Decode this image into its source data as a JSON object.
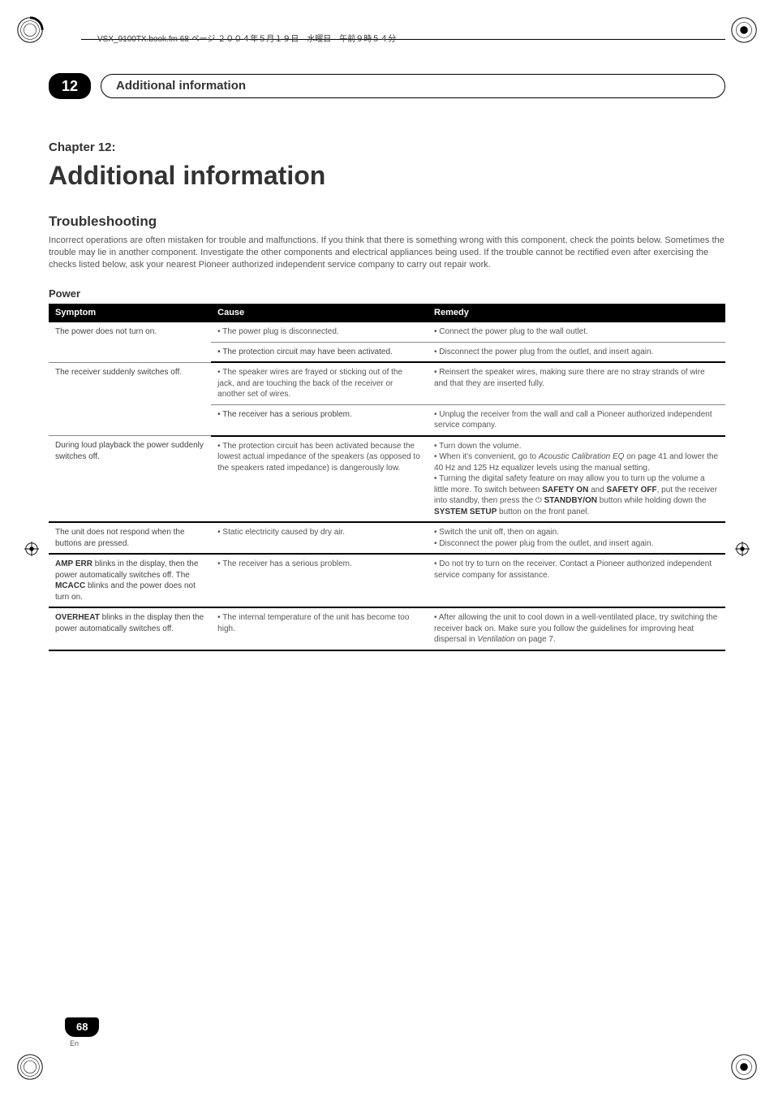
{
  "header_line": "VSX_9100TX.book.fm 68 ページ ２００４年５月１９日　水曜日　午前９時５４分",
  "section_number": "12",
  "section_title": "Additional information",
  "chapter_label": "Chapter 12:",
  "chapter_title": "Additional information",
  "subheading": "Troubleshooting",
  "intro_text": "Incorrect operations are often mistaken for trouble and malfunctions. If you think that there is something wrong with this component, check the points below. Sometimes the trouble may lie in another component. Investigate the other components and electrical appliances being used. If the trouble cannot be rectified even after exercising the checks listed below, ask your nearest Pioneer authorized independent service company to carry out repair work.",
  "power_heading": "Power",
  "table": {
    "columns": [
      "Symptom",
      "Cause",
      "Remedy"
    ],
    "rows": [
      {
        "symptom": "The power does not turn on.",
        "cause": "• The power plug is disconnected.",
        "remedy": "• Connect the power plug to the wall outlet.",
        "rowspan_symptom": 2,
        "heavy": false
      },
      {
        "symptom": "",
        "cause": "• The protection circuit may have been activated.",
        "remedy": "• Disconnect the power plug from the outlet, and insert again.",
        "heavy": true
      },
      {
        "symptom": "The receiver suddenly switches off.",
        "cause": "• The speaker wires are frayed or sticking out of the jack, and are touching the back of the receiver or another set of wires.",
        "remedy": "• Reinsert the speaker wires, making sure there are no stray strands of wire and that they are inserted fully.",
        "rowspan_symptom": 2,
        "heavy": false
      },
      {
        "symptom": "",
        "cause": "• The receiver has a serious problem.",
        "remedy": "• Unplug the receiver from the wall and call a Pioneer authorized independent service company.",
        "heavy": true
      },
      {
        "symptom": "During loud playback the power suddenly switches off.",
        "cause": "• The protection circuit has been activated because the lowest actual impedance of the speakers (as opposed to the speakers rated impedance) is dangerously low.",
        "remedy_html": "• Turn down the volume.<br>• When it's convenient, go to <span class=\"i\">Acoustic Calibration EQ</span> on page 41 and lower the 40 Hz and 125 Hz equalizer levels using the manual setting.<br>• Turning the digital safety feature on may allow you to turn up the volume a little more. To switch between <span class=\"b\">SAFETY ON</span> and <span class=\"b\">SAFETY OFF</span>, put the receiver into standby, then press the ⏻ <span class=\"b\">STANDBY/ON</span> button while holding down the <span class=\"b\">SYSTEM SETUP</span> button on the front panel.",
        "heavy": true
      },
      {
        "symptom": "The unit does not respond when the buttons are pressed.",
        "cause": "• Static electricity caused by dry air.",
        "remedy": "• Switch the unit off, then on again.\n• Disconnect the power plug from the outlet, and insert again.",
        "heavy": true
      },
      {
        "symptom_html": "<span class=\"b\">AMP ERR</span> blinks in the display, then the power automatically switches off. The <span class=\"b\">MCACC</span> blinks and the power does not turn on.",
        "cause": "• The receiver has a serious problem.",
        "remedy": "• Do not try to turn on the receiver. Contact a Pioneer authorized independent service company for assistance.",
        "heavy": true
      },
      {
        "symptom_html": "<span class=\"b\">OVERHEAT</span> blinks in the display then the power automatically switches off.",
        "cause": "• The internal temperature of the unit has become too high.",
        "remedy_html": "• After allowing the unit to cool down in a well-ventilated place, try switching the receiver back on. Make sure you follow the guidelines for improving heat dispersal in <span class=\"i\">Ventilation</span> on page 7.",
        "heavy": true
      }
    ]
  },
  "page_number": "68",
  "page_lang": "En",
  "colors": {
    "text": "#333333",
    "muted": "#555555",
    "border": "#888888",
    "black": "#000000",
    "white": "#ffffff"
  }
}
